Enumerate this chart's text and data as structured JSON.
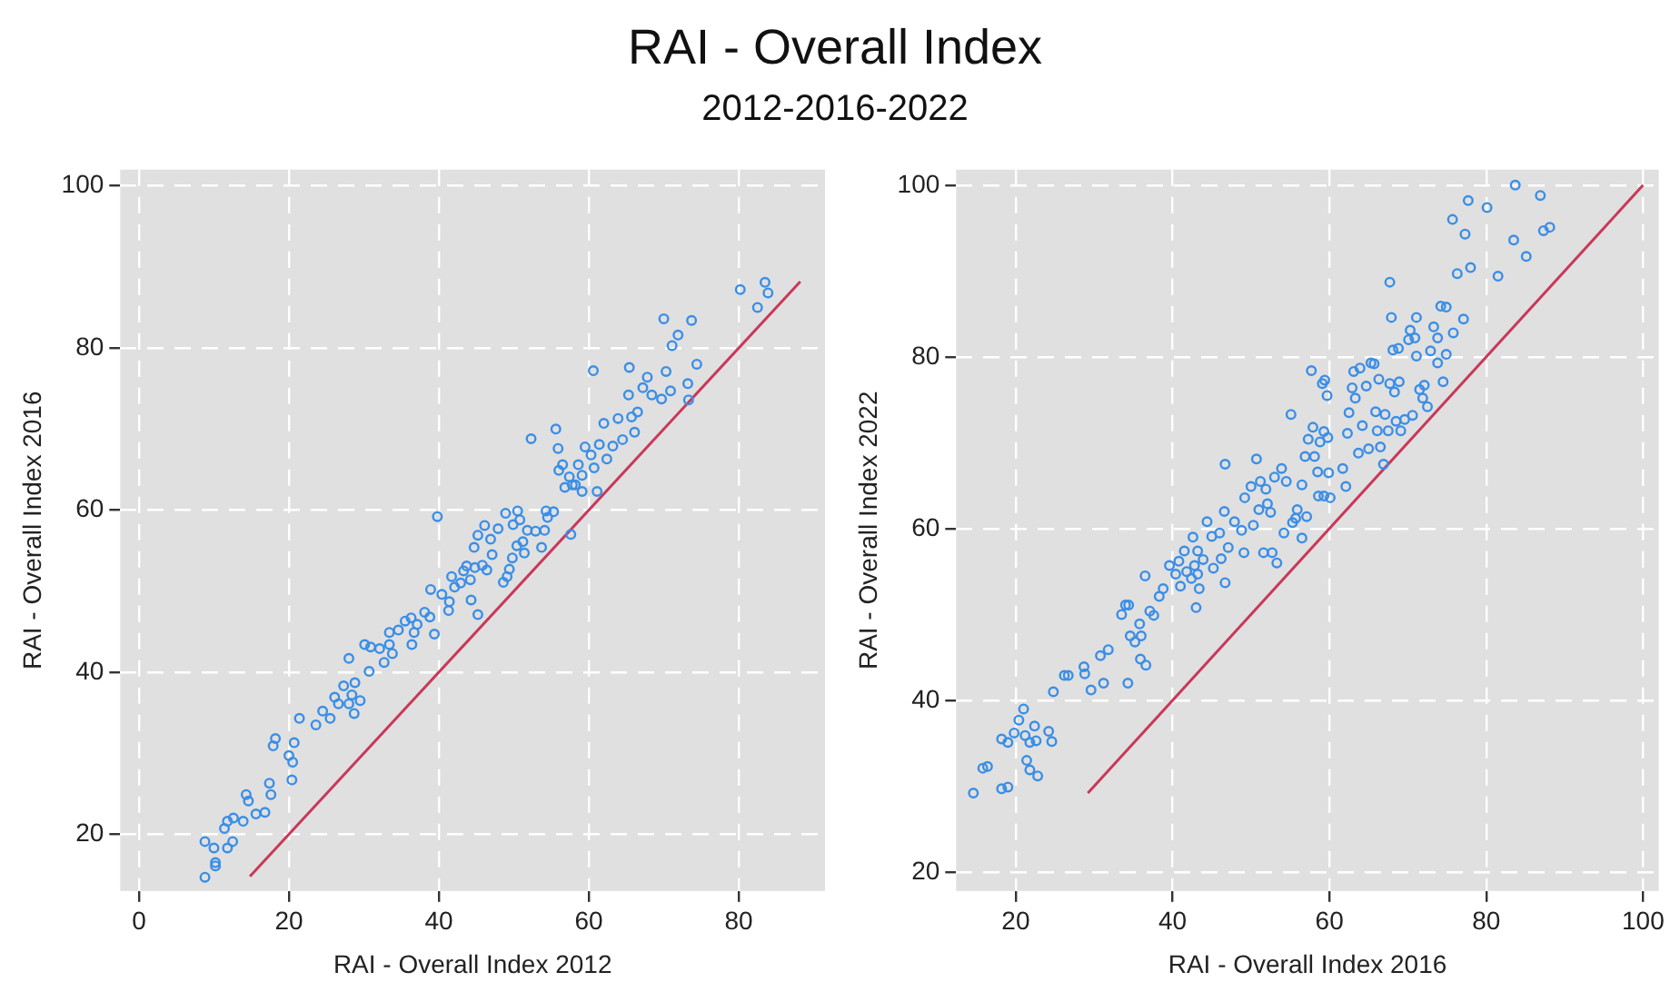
{
  "chart_data": [
    {
      "type": "scatter",
      "title": "RAI - Overall Index",
      "subtitle": "2012-2016-2022",
      "xlabel": "RAI - Overall Index 2012",
      "ylabel": "RAI - Overall Index 2016",
      "xlim": [
        -2.5,
        91.5
      ],
      "ylim": [
        13,
        102
      ],
      "xticks": [
        0,
        20,
        40,
        60,
        80
      ],
      "yticks": [
        20,
        40,
        60,
        80,
        100
      ],
      "grid": true,
      "legend": false,
      "series": [
        {
          "type": "scatter",
          "marker": "circle",
          "color": "#3a8ee6",
          "x": [
            8.8,
            10.2,
            10.2,
            8.8,
            10.0,
            11.8,
            12.5,
            11.4,
            11.8,
            12.6,
            13.9,
            14.3,
            14.6,
            15.6,
            16.8,
            17.6,
            17.4,
            17.9,
            18.2,
            20.0,
            20.5,
            20.4,
            20.7,
            21.4,
            23.6,
            24.5,
            25.5,
            26.1,
            26.6,
            27.3,
            28.0,
            28.4,
            28.7,
            28.8,
            29.5,
            28.0,
            30.1,
            30.7,
            30.9,
            32.1,
            32.7,
            33.4,
            33.8,
            33.4,
            34.6,
            35.5,
            36.3,
            36.7,
            37.1,
            36.4,
            38.1,
            38.8,
            39.4,
            39.8,
            38.9,
            40.4,
            41.3,
            41.4,
            41.7,
            42.1,
            42.9,
            43.3,
            43.7,
            44.2,
            44.3,
            44.8,
            45.2,
            45.8,
            46.4,
            44.7,
            45.2,
            46.1,
            46.9,
            47.1,
            47.9,
            48.6,
            49.1,
            49.4,
            49.8,
            48.9,
            49.9,
            50.5,
            50.8,
            50.4,
            51.2,
            51.4,
            51.8,
            52.3,
            52.9,
            53.7,
            54.1,
            54.5,
            54.3,
            55.3,
            55.6,
            55.9,
            56.0,
            56.8,
            57.6,
            56.5,
            57.4,
            58.2,
            58.6,
            59.1,
            59.5,
            60.3,
            60.6,
            60.7,
            61.1,
            61.4,
            62.0,
            62.4,
            63.2,
            63.9,
            64.5,
            65.3,
            65.4,
            65.7,
            66.1,
            66.5,
            67.2,
            67.8,
            68.4,
            69.7,
            70.0,
            70.3,
            70.9,
            71.1,
            71.9,
            73.2,
            73.3,
            73.7,
            74.4,
            80.2,
            82.5,
            83.5,
            83.9,
            57.8,
            59.1
          ],
          "values": [
            14.7,
            16.1,
            16.5,
            19.1,
            18.3,
            18.3,
            19.1,
            20.7,
            21.6,
            22.0,
            21.6,
            24.9,
            24.1,
            22.5,
            22.7,
            24.9,
            26.3,
            30.9,
            31.8,
            29.7,
            28.9,
            26.7,
            31.3,
            34.3,
            33.5,
            35.2,
            34.3,
            36.9,
            36.1,
            38.3,
            36.1,
            37.2,
            34.9,
            38.7,
            36.5,
            41.7,
            43.4,
            40.1,
            43.1,
            42.9,
            41.2,
            43.4,
            42.3,
            44.9,
            45.2,
            46.3,
            46.7,
            44.9,
            45.9,
            43.4,
            47.4,
            46.8,
            44.7,
            59.2,
            50.2,
            49.6,
            47.6,
            48.7,
            51.8,
            50.5,
            51.0,
            52.5,
            53.1,
            51.4,
            48.9,
            52.9,
            47.1,
            53.2,
            52.6,
            55.4,
            56.9,
            58.1,
            56.4,
            54.5,
            57.7,
            51.1,
            51.8,
            52.7,
            54.1,
            59.6,
            58.2,
            59.9,
            58.8,
            55.6,
            56.1,
            54.7,
            57.5,
            68.8,
            57.4,
            55.4,
            57.5,
            59.1,
            59.9,
            59.8,
            70.0,
            67.6,
            64.9,
            62.8,
            57.0,
            65.6,
            64.1,
            63.1,
            65.6,
            64.3,
            67.8,
            66.8,
            77.2,
            65.2,
            62.3,
            68.1,
            70.7,
            66.3,
            67.9,
            71.3,
            68.7,
            74.2,
            77.6,
            71.5,
            69.6,
            72.1,
            75.1,
            76.4,
            74.2,
            73.7,
            83.6,
            77.1,
            74.7,
            80.3,
            81.6,
            75.6,
            73.6,
            83.4,
            78.0,
            87.2,
            85.0,
            88.1,
            86.8,
            63.1,
            62.3
          ]
        },
        {
          "type": "line",
          "marker": "none",
          "color": "#c8385a",
          "line_style": "solid",
          "x": [
            14.8,
            88.2
          ],
          "values": [
            14.8,
            88.2
          ]
        }
      ]
    },
    {
      "type": "scatter",
      "xlabel": "RAI - Overall Index 2016",
      "ylabel": "RAI - Overall Index 2022",
      "xlim": [
        12.4,
        102
      ],
      "ylim": [
        17.8,
        101.8
      ],
      "xticks": [
        20,
        40,
        60,
        80,
        100
      ],
      "yticks": [
        20,
        40,
        60,
        80,
        100
      ],
      "grid": true,
      "legend": false,
      "series": [
        {
          "type": "scatter",
          "marker": "circle",
          "color": "#3a8ee6",
          "x": [
            14.6,
            15.8,
            16.4,
            18.2,
            19.0,
            18.2,
            19.0,
            19.8,
            20.4,
            21.0,
            21.2,
            21.8,
            22.4,
            22.6,
            21.4,
            21.8,
            22.8,
            24.2,
            24.6,
            24.8,
            26.2,
            26.7,
            28.7,
            28.8,
            29.6,
            30.8,
            31.2,
            31.8,
            33.5,
            34.0,
            34.4,
            34.3,
            34.6,
            35.2,
            35.8,
            36.0,
            35.9,
            36.6,
            36.5,
            37.1,
            37.6,
            38.3,
            38.8,
            39.6,
            40.4,
            40.8,
            41.0,
            41.5,
            41.8,
            42.4,
            42.6,
            42.8,
            43.0,
            43.2,
            43.2,
            43.4,
            43.9,
            44.4,
            45.0,
            45.2,
            46.0,
            46.2,
            46.6,
            46.7,
            47.1,
            46.7,
            47.9,
            48.8,
            49.1,
            49.2,
            50.0,
            50.3,
            50.7,
            51.0,
            51.2,
            51.6,
            51.9,
            52.1,
            52.5,
            52.7,
            53.0,
            53.3,
            53.9,
            54.2,
            54.5,
            55.1,
            55.3,
            55.7,
            55.9,
            56.5,
            56.5,
            56.9,
            57.1,
            57.3,
            57.7,
            57.9,
            58.1,
            58.5,
            58.6,
            58.8,
            59.1,
            59.3,
            59.3,
            59.4,
            59.7,
            59.8,
            59.9,
            60.1,
            61.7,
            62.1,
            62.3,
            62.5,
            62.9,
            63.1,
            63.3,
            63.7,
            63.9,
            64.2,
            64.7,
            65.0,
            65.3,
            65.7,
            65.9,
            66.1,
            66.3,
            66.5,
            66.9,
            67.1,
            67.5,
            67.7,
            67.7,
            67.9,
            68.1,
            68.3,
            68.5,
            68.8,
            68.9,
            69.1,
            69.6,
            70.1,
            70.3,
            70.6,
            70.9,
            71.1,
            71.1,
            71.5,
            71.9,
            72.1,
            72.5,
            72.9,
            73.3,
            73.8,
            73.8,
            74.2,
            74.5,
            74.9,
            74.9,
            75.7,
            75.8,
            76.3,
            77.1,
            77.3,
            77.7,
            78.0,
            80.1,
            81.5,
            83.5,
            83.7,
            85.1,
            86.9,
            87.3,
            88.1
          ],
          "values": [
            29.2,
            32.1,
            32.3,
            29.7,
            29.9,
            35.5,
            35.1,
            36.2,
            37.7,
            39.0,
            35.9,
            35.1,
            37.0,
            35.3,
            33.0,
            31.9,
            31.2,
            36.4,
            35.2,
            41.0,
            42.9,
            42.9,
            43.9,
            43.1,
            41.2,
            45.2,
            42.0,
            45.9,
            50.0,
            51.1,
            51.1,
            42.0,
            47.5,
            46.8,
            48.9,
            47.5,
            44.8,
            44.1,
            54.5,
            50.4,
            49.9,
            52.1,
            53.0,
            55.7,
            54.7,
            56.2,
            53.3,
            57.4,
            55.0,
            54.2,
            59.0,
            55.7,
            50.8,
            57.4,
            54.7,
            53.0,
            56.4,
            60.8,
            59.1,
            55.4,
            59.5,
            56.5,
            62.0,
            53.7,
            57.8,
            67.5,
            60.8,
            59.8,
            57.2,
            63.6,
            64.9,
            60.4,
            68.1,
            62.2,
            65.5,
            57.2,
            64.6,
            62.9,
            61.9,
            57.2,
            66.0,
            56.0,
            67.0,
            59.5,
            65.5,
            73.3,
            60.7,
            61.2,
            62.2,
            58.9,
            65.1,
            68.4,
            61.4,
            70.4,
            78.4,
            71.8,
            68.4,
            66.6,
            63.8,
            70.1,
            76.9,
            71.3,
            63.8,
            77.3,
            75.5,
            70.6,
            66.5,
            63.6,
            67.0,
            64.9,
            71.1,
            73.5,
            76.4,
            78.3,
            75.2,
            68.8,
            78.7,
            72.0,
            76.6,
            69.3,
            79.3,
            79.2,
            73.6,
            71.4,
            77.4,
            69.5,
            67.5,
            73.3,
            71.4,
            88.7,
            76.9,
            84.6,
            80.8,
            75.9,
            72.5,
            81.0,
            77.1,
            71.4,
            72.7,
            82.0,
            83.1,
            73.2,
            82.2,
            84.6,
            80.1,
            76.2,
            75.2,
            76.7,
            74.2,
            80.7,
            83.5,
            79.3,
            82.2,
            85.9,
            77.1,
            80.3,
            85.8,
            96.0,
            82.8,
            89.7,
            84.4,
            94.3,
            98.2,
            90.4,
            97.4,
            89.4,
            93.6,
            100.0,
            91.7,
            98.8,
            94.7,
            95.1
          ]
        },
        {
          "type": "line",
          "marker": "none",
          "color": "#c8385a",
          "line_style": "solid",
          "x": [
            29.2,
            100
          ],
          "values": [
            29.2,
            100
          ]
        }
      ]
    }
  ]
}
